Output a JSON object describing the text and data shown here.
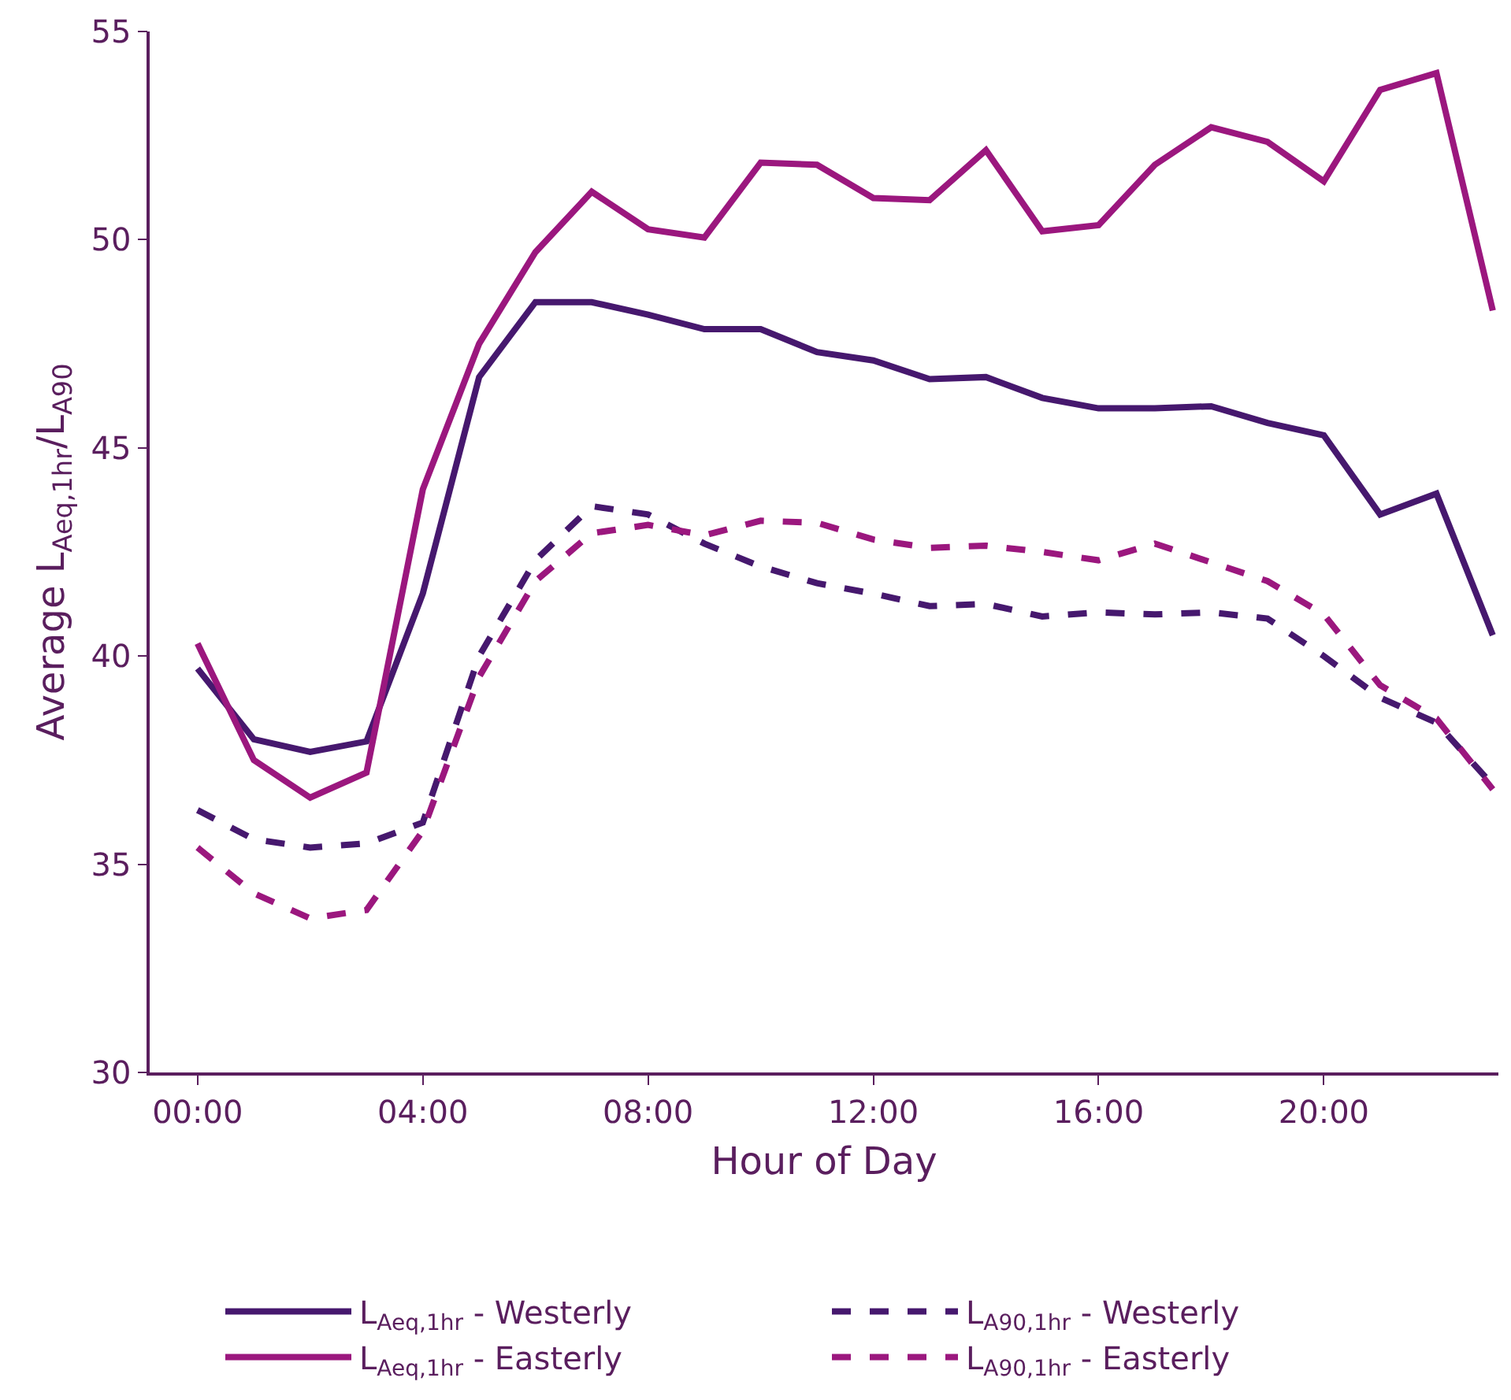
{
  "chart_data": {
    "type": "line",
    "xlabel": "Hour of Day",
    "ylabel": "Average L$_{Aeq,1hr}$/L$_{A90}$",
    "x": [
      0,
      1,
      2,
      3,
      4,
      5,
      6,
      7,
      8,
      9,
      10,
      11,
      12,
      13,
      14,
      15,
      16,
      17,
      18,
      19,
      20,
      21,
      22,
      23
    ],
    "xlim": [
      -0.85,
      23.1
    ],
    "xticks": [
      {
        "value": 0,
        "label": "00:00"
      },
      {
        "value": 4,
        "label": "04:00"
      },
      {
        "value": 8,
        "label": "08:00"
      },
      {
        "value": 12,
        "label": "12:00"
      },
      {
        "value": 16,
        "label": "16:00"
      },
      {
        "value": 20,
        "label": "20:00"
      }
    ],
    "ylim": [
      30,
      55
    ],
    "yticks": [
      30,
      35,
      40,
      45,
      50,
      55
    ],
    "grid": false,
    "legend": "bottom",
    "marker": "none",
    "series": [
      {
        "name": "L$_{Aeq,1hr}$ - Westerly",
        "color": "#46186e",
        "line_style": "solid",
        "values": [
          39.7,
          38.0,
          37.7,
          37.95,
          41.5,
          46.7,
          48.5,
          48.5,
          48.2,
          47.85,
          47.85,
          47.3,
          47.1,
          46.65,
          46.7,
          46.2,
          45.95,
          45.95,
          46.0,
          45.6,
          45.3,
          43.4,
          43.9,
          40.5
        ]
      },
      {
        "name": "L$_{A90,1hr}$ - Westerly",
        "color": "#46186e",
        "line_style": "dashed",
        "values": [
          36.3,
          35.6,
          35.4,
          35.5,
          36.0,
          40.0,
          42.3,
          43.6,
          43.4,
          42.7,
          42.15,
          41.75,
          41.5,
          41.2,
          41.25,
          40.95,
          41.05,
          41.0,
          41.05,
          40.9,
          40.0,
          39.0,
          38.4,
          36.9
        ]
      },
      {
        "name": "L$_{Aeq,1hr}$ - Easterly",
        "color": "#9b177e",
        "line_style": "solid",
        "values": [
          40.3,
          37.5,
          36.6,
          37.2,
          44.0,
          47.5,
          49.7,
          51.15,
          50.25,
          50.05,
          51.85,
          51.8,
          51.0,
          50.95,
          52.15,
          50.2,
          50.35,
          51.8,
          52.7,
          52.35,
          51.4,
          53.6,
          54.0,
          48.3
        ]
      },
      {
        "name": "L$_{A90,1hr}$ - Easterly",
        "color": "#9b177e",
        "line_style": "dashed",
        "values": [
          35.4,
          34.3,
          33.7,
          33.9,
          35.8,
          39.5,
          41.8,
          42.95,
          43.15,
          42.9,
          43.25,
          43.2,
          42.8,
          42.6,
          42.65,
          42.5,
          42.3,
          42.7,
          42.25,
          41.8,
          41.0,
          39.3,
          38.5,
          36.8
        ]
      }
    ]
  }
}
